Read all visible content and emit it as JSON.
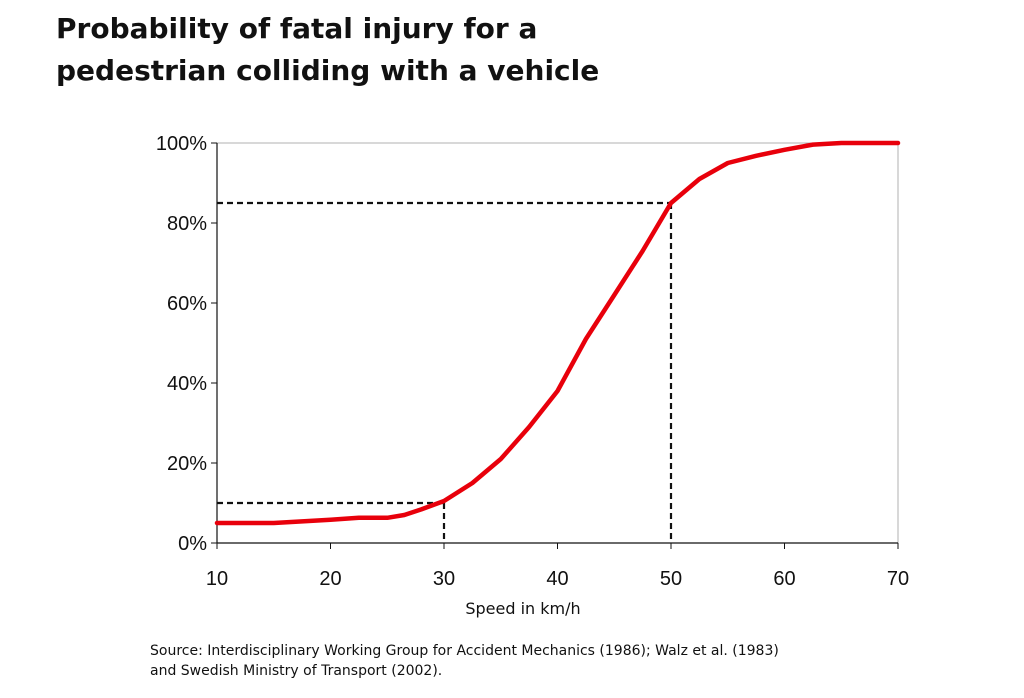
{
  "title": {
    "line1": "Probability of fatal injury for a",
    "line2": "pedestrian colliding with a vehicle"
  },
  "source": {
    "line1": "Source: Interdisciplinary Working Group for Accident Mechanics (1986); Walz et al. (1983)",
    "line2": "and Swedish Ministry of Transport (2002)."
  },
  "chart_data": {
    "type": "line",
    "title": "Probability of fatal injury for a pedestrian colliding with a vehicle",
    "xlabel": "Speed in km/h",
    "ylabel": "",
    "xlim": [
      10,
      70
    ],
    "ylim": [
      0,
      100
    ],
    "x_ticks": [
      10,
      20,
      30,
      40,
      50,
      60,
      70
    ],
    "y_ticks": [
      0,
      20,
      40,
      60,
      80,
      100
    ],
    "y_tick_labels": [
      "0%",
      "20%",
      "40%",
      "60%",
      "80%",
      "100%"
    ],
    "x_tick_labels": [
      "10",
      "20",
      "30",
      "40",
      "50",
      "60",
      "70"
    ],
    "grid": false,
    "line_color": "#e8000b",
    "series": [
      {
        "x": [
          10,
          15,
          20,
          22.5,
          25,
          26.5,
          28,
          30,
          32.5,
          35,
          37.5,
          40,
          42.5,
          45,
          47.5,
          50,
          52.5,
          55,
          57.5,
          60,
          62.5,
          65,
          67.5,
          70
        ],
        "y": [
          5,
          5,
          5.8,
          6.3,
          6.3,
          7,
          8.4,
          10.5,
          15,
          21,
          29,
          38,
          51,
          62,
          73,
          85,
          91,
          95,
          96.8,
          98.3,
          99.6,
          100,
          100,
          100
        ]
      }
    ],
    "reference_lines": [
      {
        "x": 30,
        "y": 10
      },
      {
        "x": 50,
        "y": 85
      }
    ]
  }
}
